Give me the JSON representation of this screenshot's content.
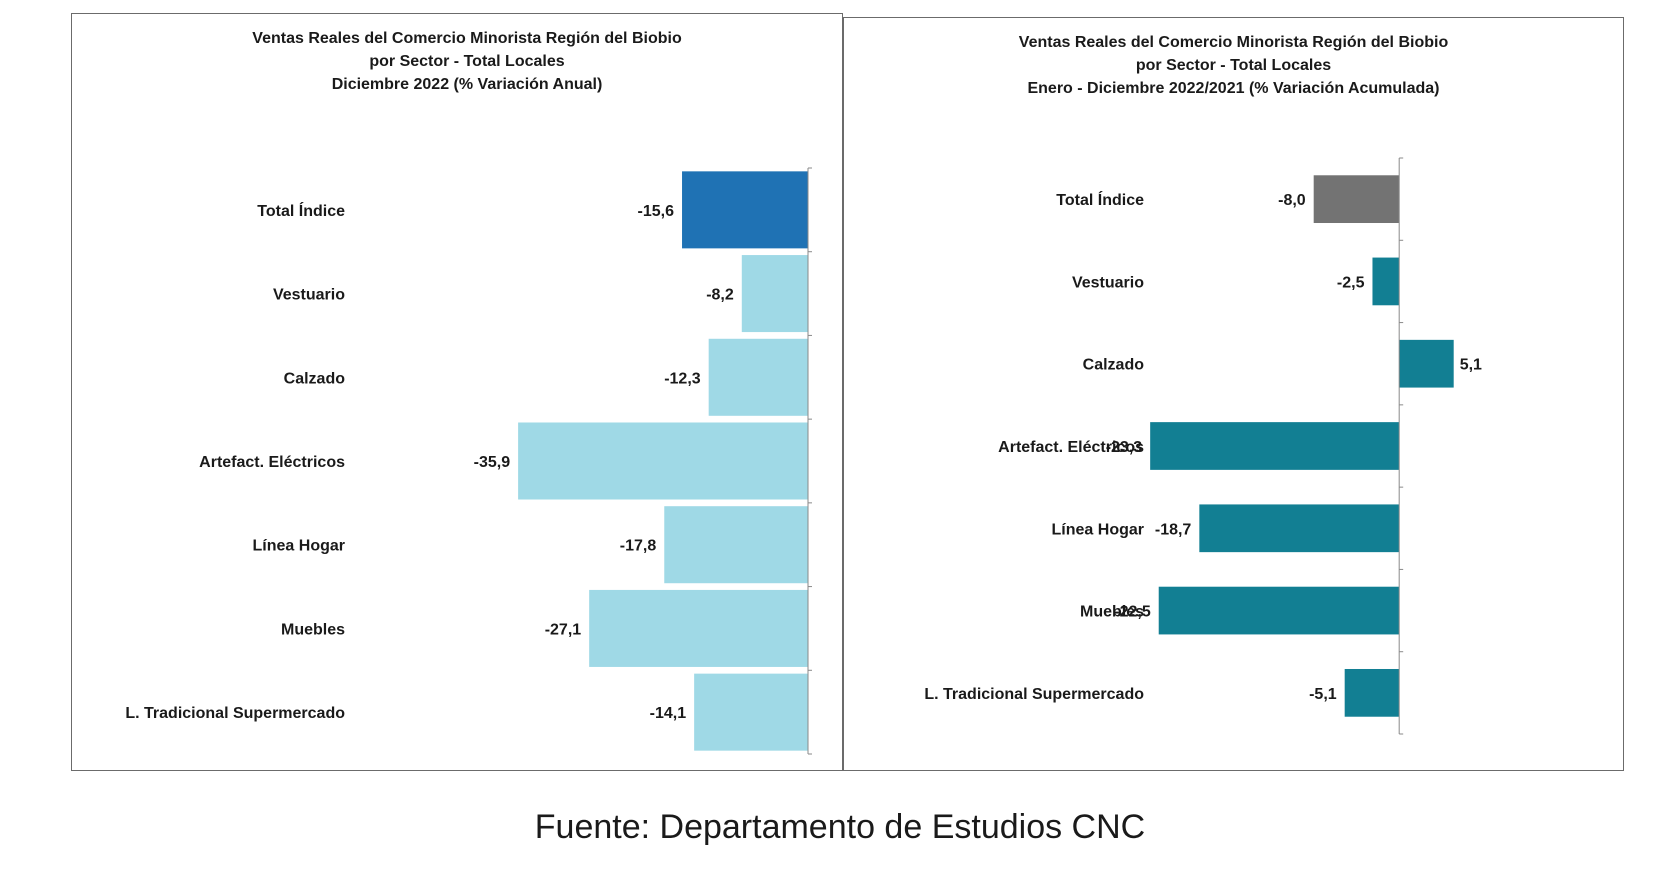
{
  "chart_data": [
    {
      "type": "bar",
      "orientation": "horizontal",
      "title": [
        "Ventas Reales del Comercio Minorista  Región del Biobio",
        "por Sector - Total Locales",
        "Diciembre 2022  (% Variación Anual)"
      ],
      "categories": [
        "Total Índice",
        "Vestuario",
        "Calzado",
        "Artefact. Eléctricos",
        "Línea Hogar",
        "Muebles",
        "L. Tradicional Supermercado"
      ],
      "values": [
        -15.6,
        -8.2,
        -12.3,
        -35.9,
        -17.8,
        -27.1,
        -14.1
      ],
      "value_labels": [
        "-15,6",
        "-8,2",
        "-12,3",
        "-35,9",
        "-17,8",
        "-27,1",
        "-14,1"
      ],
      "colors": [
        "#1f72b4",
        "#9fd9e6",
        "#9fd9e6",
        "#9fd9e6",
        "#9fd9e6",
        "#9fd9e6",
        "#9fd9e6"
      ],
      "xlim": [
        -40,
        0
      ],
      "grid": false,
      "legend": "none"
    },
    {
      "type": "bar",
      "orientation": "horizontal",
      "title": [
        "Ventas Reales del Comercio Minorista Región del Biobio",
        "por Sector - Total Locales",
        "Enero - Diciembre 2022/2021  (% Variación Acumulada)"
      ],
      "categories": [
        "Total Índice",
        "Vestuario",
        "Calzado",
        "Artefact. Eléctricos",
        "Línea Hogar",
        "Muebles",
        "L. Tradicional Supermercado"
      ],
      "values": [
        -8.0,
        -2.5,
        5.1,
        -23.3,
        -18.7,
        -22.5,
        -5.1
      ],
      "value_labels": [
        "-8,0",
        "-2,5",
        "5,1",
        "-23,3",
        "-18,7",
        "-22,5",
        "-5,1"
      ],
      "colors": [
        "#737373",
        "#127f93",
        "#127f93",
        "#127f93",
        "#127f93",
        "#127f93",
        "#127f93"
      ],
      "xlim": [
        -25,
        7
      ],
      "grid": false,
      "legend": "none"
    }
  ],
  "footer": {
    "source": "Fuente: Departamento de Estudios CNC"
  }
}
